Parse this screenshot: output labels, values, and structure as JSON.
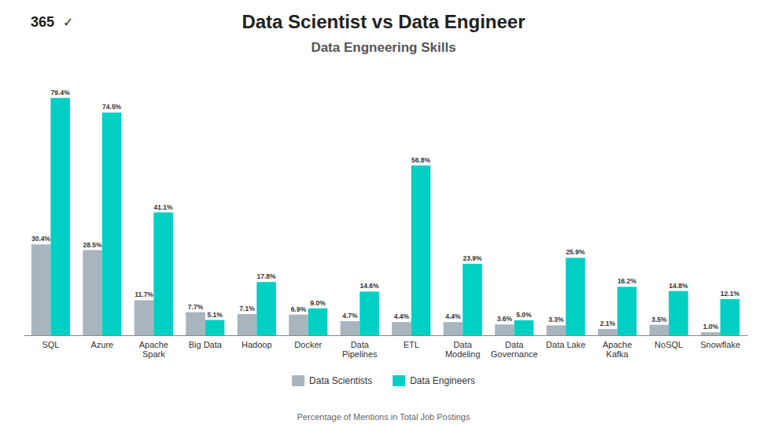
{
  "chart_data": {
    "type": "bar",
    "title": "Data Scientist vs Data Engineer",
    "subtitle": "Data Engneering Skills",
    "xlabel": "Percentage of Mentions in Total Job Postings",
    "annotations": [
      "365",
      "✓"
    ],
    "categories": [
      "SQL",
      "Azure",
      "Apache\nSpark",
      "Big Data",
      "Hadoop",
      "Docker",
      "Data\nPipelines",
      "ETL",
      "Data\nModeling",
      "Data\nGovernance",
      "Data Lake",
      "Apache\nKafka",
      "NoSQL",
      "Snowflake"
    ],
    "series": [
      {
        "name": "Data Scientists",
        "color": "#a8b5be",
        "values": [
          30.4,
          28.5,
          11.7,
          7.7,
          7.1,
          6.9,
          4.7,
          4.4,
          4.4,
          3.6,
          3.3,
          2.1,
          3.5,
          1.0
        ],
        "value_labels": [
          "30.4%",
          "28.5%",
          "11.7%",
          "7.7%",
          "7.1%",
          "6.9%",
          "4.7%",
          "4.4%",
          "4.4%",
          "3.6%",
          "3.3%",
          "2.1%",
          "3.5%",
          "1.0%"
        ]
      },
      {
        "name": "Data Engineers",
        "color": "#00cfc4",
        "values": [
          79.4,
          74.5,
          41.1,
          5.1,
          17.8,
          9.0,
          14.6,
          56.8,
          23.9,
          5.0,
          25.9,
          16.2,
          14.8,
          12.1
        ],
        "value_labels": [
          "79.4%",
          "74.5%",
          "41.1%",
          "5.1%",
          "17.8%",
          "9.0%",
          "14.6%",
          "56.8%",
          "23.9%",
          "5.0%",
          "25.9%",
          "16.2%",
          "14.8%",
          "12.1%"
        ]
      }
    ],
    "ylim": [
      0,
      88
    ],
    "grid": false,
    "legend": "bottom",
    "data_labels": true,
    "tick_labels": "x"
  }
}
